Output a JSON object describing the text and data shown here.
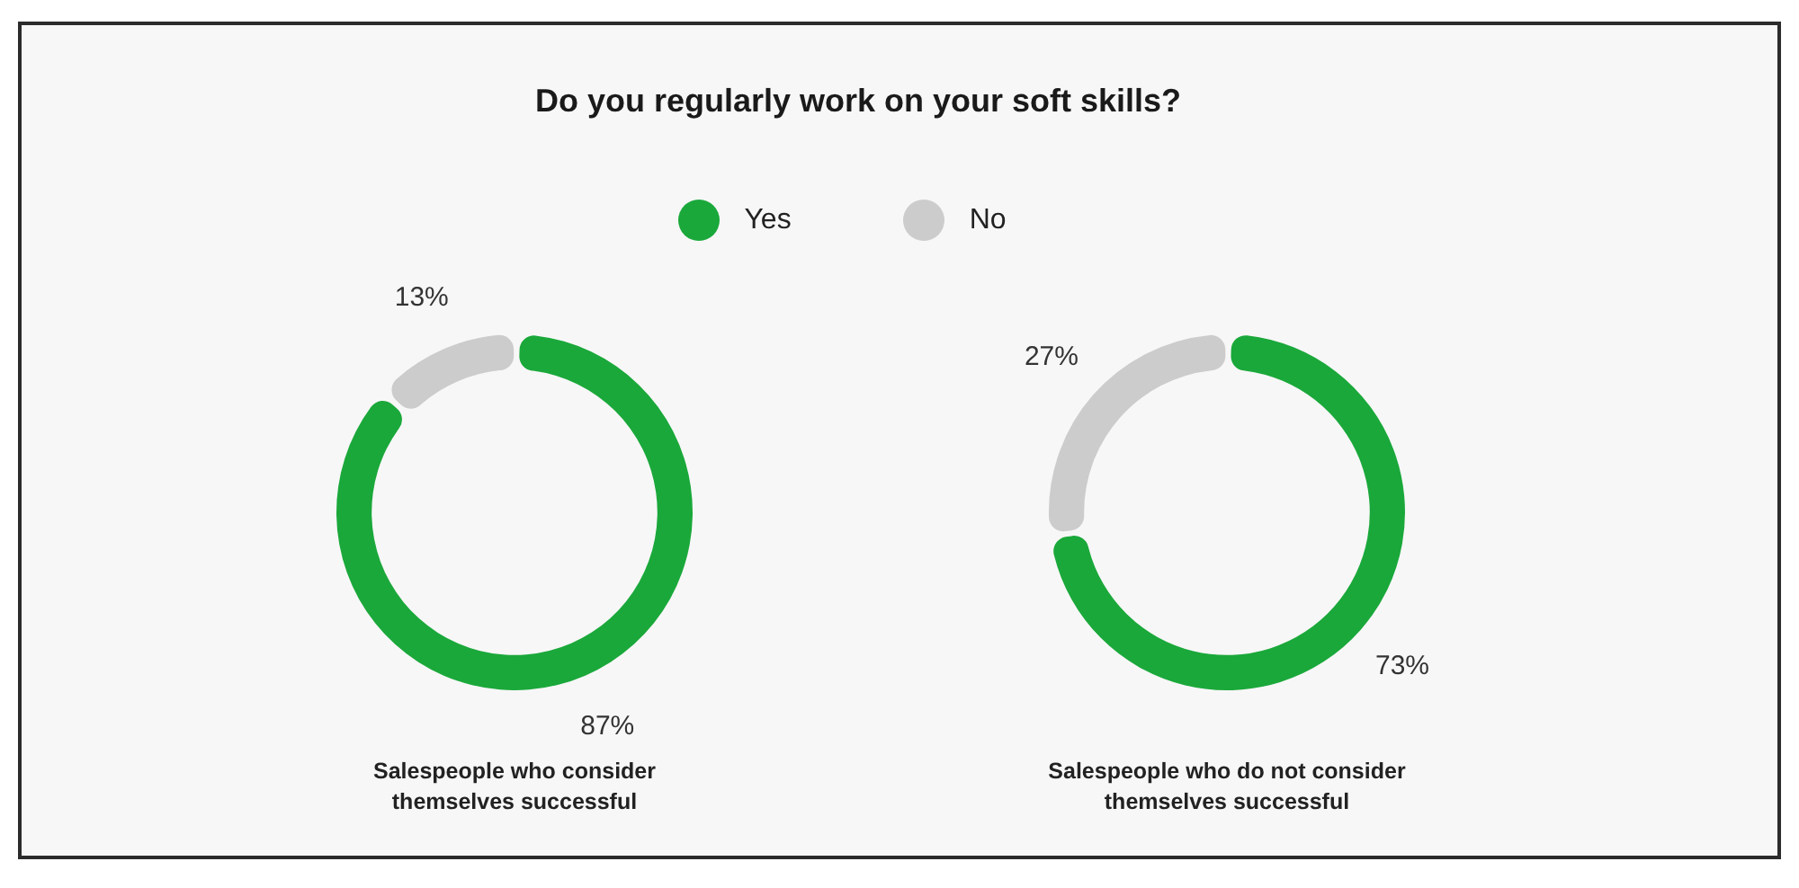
{
  "chart_data": {
    "type": "donut",
    "title": "Do you regularly work on your soft skills?",
    "legend": "top",
    "categories": [
      "Yes",
      "No"
    ],
    "colors": [
      "#1aa83a",
      "#cccccc"
    ],
    "series": [
      {
        "name": "Salespeople who consider themselves successful",
        "values": [
          87,
          13
        ],
        "value_labels": [
          "87%",
          "13%"
        ]
      },
      {
        "name": "Salespeople who do not consider themselves successful",
        "values": [
          73,
          27
        ],
        "value_labels": [
          "73%",
          "27%"
        ]
      }
    ]
  }
}
